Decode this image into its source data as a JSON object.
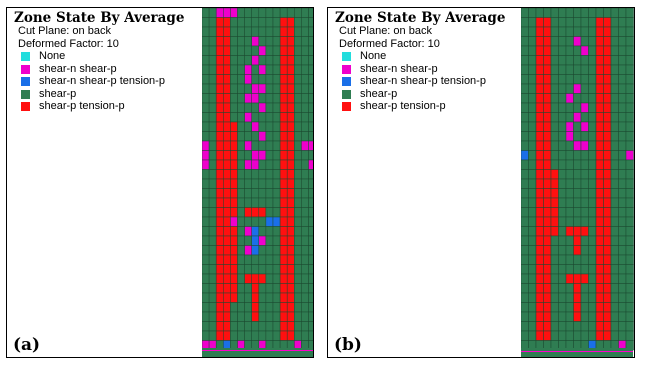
{
  "legend_items": [
    {
      "label": "None",
      "color": "#22dddd"
    },
    {
      "label": "shear-n shear-p",
      "color": "#ee00cc"
    },
    {
      "label": "shear-n shear-p tension-p",
      "color": "#1a6fe8"
    },
    {
      "label": "shear-p",
      "color": "#2f7d52"
    },
    {
      "label": "shear-p tension-p",
      "color": "#ff1010"
    }
  ],
  "panels": [
    {
      "label": "(a)",
      "title": "Zone State By Average",
      "cut_plane": "Cut Plane: on back",
      "deformed_factor": "Deformed Factor: 10"
    },
    {
      "label": "(b)",
      "title": "Zone State By Average",
      "cut_plane": "Cut Plane: on back",
      "deformed_factor": "Deformed Factor: 10"
    }
  ]
}
